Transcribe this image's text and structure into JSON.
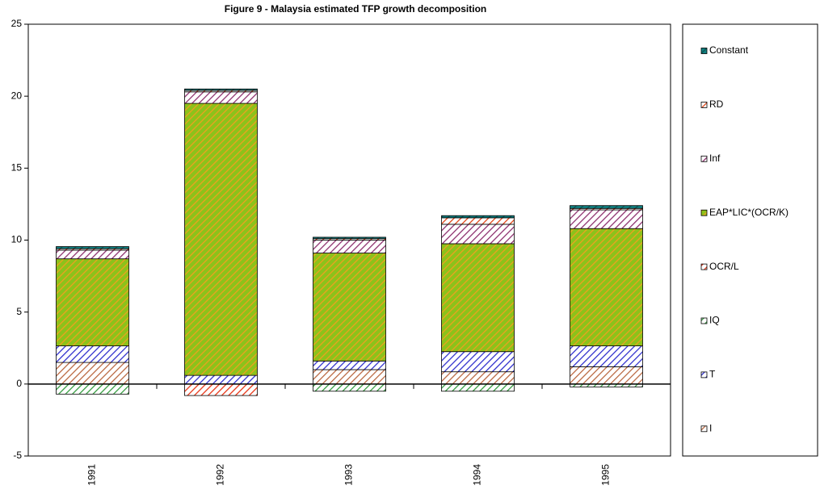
{
  "chart_data": {
    "type": "stacked_bar",
    "title": "Figure 9 - Malaysia estimated TFP growth decomposition",
    "categories": [
      "1991",
      "1992",
      "1993",
      "1994",
      "1995"
    ],
    "series": [
      {
        "name": "I",
        "color": "#b8643c",
        "fill": "#ffffff",
        "values": [
          1.5,
          0,
          1.0,
          0.85,
          1.2
        ]
      },
      {
        "name": "T",
        "color": "#2a2acc",
        "fill": "#ffffff",
        "values": [
          1.15,
          0.6,
          0.6,
          1.4,
          1.45
        ]
      },
      {
        "name": "IQ",
        "color": "#2f9a3a",
        "fill": "#ffffff",
        "values": [
          -0.7,
          0,
          -0.5,
          -0.5,
          -0.2
        ]
      },
      {
        "name": "OCR/L",
        "color": "#e83010",
        "fill": "#ffffff",
        "values": [
          0,
          -0.8,
          0,
          0,
          0
        ]
      },
      {
        "name": "EAP*LIC*(OCR/K)",
        "color": "#f0a020",
        "fill": "#8cc21a",
        "values": [
          6.05,
          18.9,
          7.5,
          7.5,
          8.15
        ]
      },
      {
        "name": "Inf",
        "color": "#8a2a6a",
        "fill": "#ffffff",
        "values": [
          0.6,
          0.8,
          0.9,
          1.35,
          1.3
        ]
      },
      {
        "name": "RD",
        "color": "#e04010",
        "fill": "#ffffff",
        "values": [
          0.1,
          0.1,
          0.1,
          0.45,
          0.1
        ]
      },
      {
        "name": "Constant",
        "color": "#0a5050",
        "fill": "#108080",
        "values": [
          0.15,
          0.1,
          0.1,
          0.15,
          0.2
        ]
      }
    ],
    "ylim": [
      -5,
      25
    ],
    "yticks": [
      -5,
      0,
      5,
      10,
      15,
      20,
      25
    ]
  }
}
